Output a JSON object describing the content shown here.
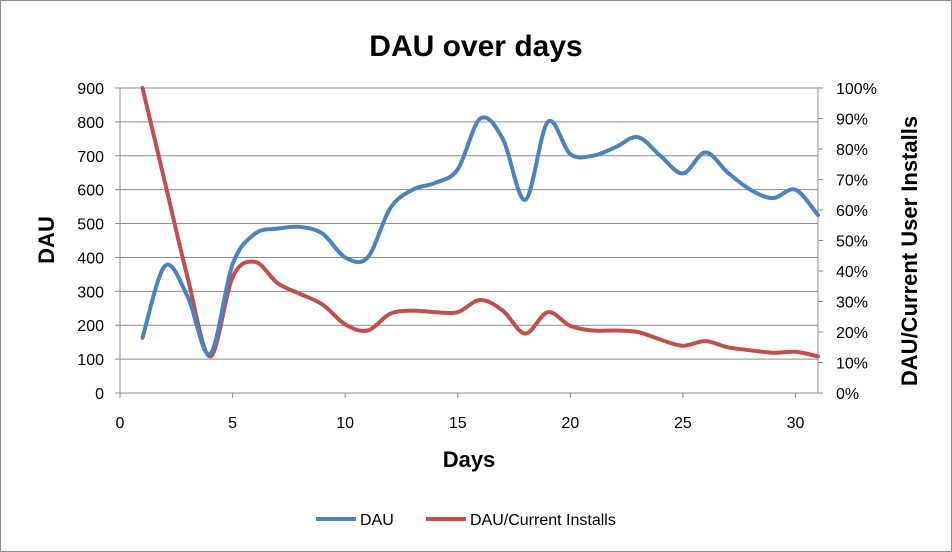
{
  "chart_data": {
    "type": "line",
    "title": "DAU over days",
    "xlabel": "Days",
    "ylabel": "DAU",
    "y2label": "DAU/Current User Installs",
    "xlim": [
      0,
      31
    ],
    "ylim": [
      0,
      900
    ],
    "y2lim": [
      0,
      1
    ],
    "x_ticks": [
      0,
      5,
      10,
      15,
      20,
      25,
      30
    ],
    "x_tick_labels": [
      "0",
      "5",
      "10",
      "15",
      "20",
      "25",
      "30"
    ],
    "y_ticks": [
      0,
      100,
      200,
      300,
      400,
      500,
      600,
      700,
      800,
      900
    ],
    "y_tick_labels": [
      "0",
      "100",
      "200",
      "300",
      "400",
      "500",
      "600",
      "700",
      "800",
      "900"
    ],
    "y2_ticks": [
      0,
      0.1,
      0.2,
      0.3,
      0.4,
      0.5,
      0.6,
      0.7,
      0.8,
      0.9,
      1.0
    ],
    "y2_tick_labels": [
      "0%",
      "10%",
      "20%",
      "30%",
      "40%",
      "50%",
      "60%",
      "70%",
      "80%",
      "90%",
      "100%"
    ],
    "grid": "horizontal",
    "legend_position": "bottom",
    "x": [
      1,
      2,
      3,
      4,
      5,
      6,
      7,
      8,
      9,
      10,
      11,
      12,
      13,
      14,
      15,
      16,
      17,
      18,
      19,
      20,
      21,
      22,
      23,
      24,
      25,
      26,
      27,
      28,
      29,
      30,
      31
    ],
    "series": [
      {
        "name": "DAU",
        "axis": "left",
        "color": "#4F81BD",
        "values": [
          163,
          375,
          285,
          115,
          380,
          470,
          485,
          490,
          470,
          400,
          400,
          545,
          600,
          620,
          660,
          810,
          750,
          570,
          800,
          705,
          700,
          725,
          755,
          700,
          648,
          710,
          650,
          600,
          575,
          600,
          525
        ]
      },
      {
        "name": "DAU/Current Installs",
        "axis": "right",
        "color": "#C0504D",
        "values": [
          1.0,
          0.69,
          0.38,
          0.12,
          0.38,
          0.43,
          0.36,
          0.325,
          0.29,
          0.225,
          0.205,
          0.26,
          0.27,
          0.265,
          0.265,
          0.305,
          0.27,
          0.195,
          0.265,
          0.22,
          0.205,
          0.205,
          0.2,
          0.175,
          0.155,
          0.17,
          0.15,
          0.14,
          0.132,
          0.135,
          0.12
        ]
      }
    ]
  }
}
